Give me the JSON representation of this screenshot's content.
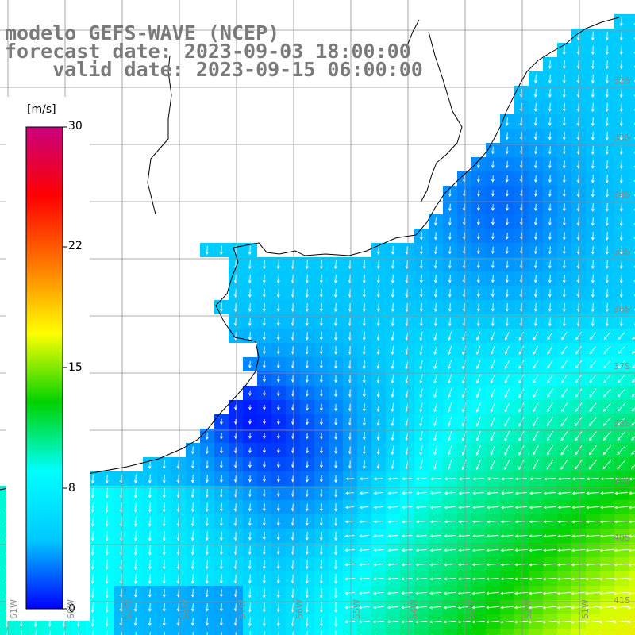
{
  "title": {
    "line1": "modelo GEFS-WAVE (NCEP)",
    "line2": "forecast date: 2023-09-03 18:00:00",
    "line3": "    valid date: 2023-09-15 06:00:00"
  },
  "colorbar": {
    "unit": "[m/s]",
    "ticks": [
      "30",
      "22",
      "15",
      "8",
      "0"
    ],
    "min": 0,
    "max": 30,
    "colors": [
      "#0000ff",
      "#00c8ff",
      "#00ffff",
      "#00d200",
      "#ffff00",
      "#ff7800",
      "#ff0000",
      "#c8007d"
    ]
  },
  "lat_labels": [
    "32S",
    "33S",
    "34S",
    "35S",
    "36S",
    "37S",
    "38S",
    "39S",
    "40S",
    "41S"
  ],
  "lon_labels": [
    "61W",
    "60W",
    "59W",
    "58W",
    "57W",
    "56W",
    "55W",
    "54W",
    "53W",
    "52W",
    "51W"
  ],
  "colors": {
    "land": "#ffffff",
    "coast": "#000000",
    "grid": "#909090",
    "title": "#7a7a7a",
    "arrows": "#ffffff"
  }
}
